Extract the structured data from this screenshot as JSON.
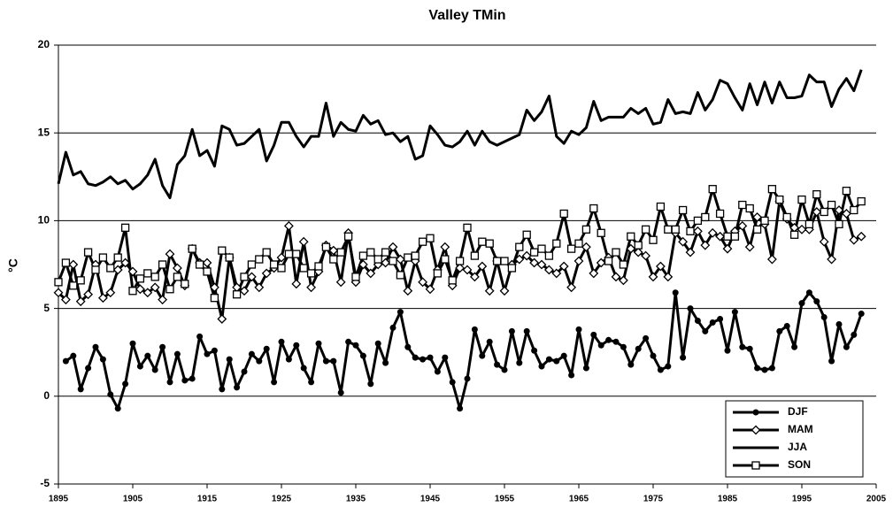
{
  "chart_data": {
    "type": "line",
    "title": "Valley TMin",
    "y_label": "°C",
    "x": [
      1895,
      1896,
      1897,
      1898,
      1899,
      1900,
      1901,
      1902,
      1903,
      1904,
      1905,
      1906,
      1907,
      1908,
      1909,
      1910,
      1911,
      1912,
      1913,
      1914,
      1915,
      1916,
      1917,
      1918,
      1919,
      1920,
      1921,
      1922,
      1923,
      1924,
      1925,
      1926,
      1927,
      1928,
      1929,
      1930,
      1931,
      1932,
      1933,
      1934,
      1935,
      1936,
      1937,
      1938,
      1939,
      1940,
      1941,
      1942,
      1943,
      1944,
      1945,
      1946,
      1947,
      1948,
      1949,
      1950,
      1951,
      1952,
      1953,
      1954,
      1955,
      1956,
      1957,
      1958,
      1959,
      1960,
      1961,
      1962,
      1963,
      1964,
      1965,
      1966,
      1967,
      1968,
      1969,
      1970,
      1971,
      1972,
      1973,
      1974,
      1975,
      1976,
      1977,
      1978,
      1979,
      1980,
      1981,
      1982,
      1983,
      1984,
      1985,
      1986,
      1987,
      1988,
      1989,
      1990,
      1991,
      1992,
      1993,
      1994,
      1995,
      1996,
      1997,
      1998,
      1999,
      2000,
      2001,
      2002,
      2003
    ],
    "series": [
      {
        "name": "DJF",
        "color": "#000000",
        "marker": "circle",
        "values": [
          null,
          2.0,
          2.3,
          0.4,
          1.6,
          2.8,
          2.1,
          0.1,
          -0.7,
          0.7,
          3.0,
          1.7,
          2.3,
          1.5,
          2.8,
          0.8,
          2.4,
          0.9,
          1.0,
          3.4,
          2.4,
          2.6,
          0.4,
          2.1,
          0.5,
          1.4,
          2.4,
          2.0,
          2.7,
          0.8,
          3.1,
          2.1,
          2.9,
          1.6,
          0.8,
          3.0,
          2.0,
          2.0,
          0.2,
          3.1,
          2.9,
          2.3,
          0.7,
          3.0,
          1.9,
          3.9,
          4.8,
          2.8,
          2.2,
          2.1,
          2.2,
          1.4,
          2.2,
          0.8,
          -0.7,
          1.0,
          3.8,
          2.3,
          3.1,
          1.8,
          1.5,
          3.7,
          1.9,
          3.7,
          2.6,
          1.7,
          2.1,
          2.0,
          2.3,
          1.2,
          3.8,
          1.6,
          3.5,
          2.9,
          3.2,
          3.1,
          2.8,
          1.8,
          2.7,
          3.3,
          2.3,
          1.5,
          1.7,
          5.9,
          2.2,
          5.0,
          4.3,
          3.7,
          4.2,
          4.4,
          2.6,
          4.8,
          2.8,
          2.7,
          1.6,
          1.5,
          1.6,
          3.7,
          4.0,
          2.8,
          5.3,
          5.9,
          5.4,
          4.5,
          2.0,
          4.1,
          2.8,
          3.5,
          4.7
        ]
      },
      {
        "name": "MAM",
        "color": "#000000",
        "marker": "diamond",
        "values": [
          5.9,
          5.5,
          7.5,
          5.4,
          5.8,
          7.5,
          5.6,
          5.9,
          7.2,
          7.6,
          7.1,
          6.1,
          5.9,
          6.2,
          5.5,
          8.1,
          7.3,
          6.3,
          8.4,
          7.6,
          7.6,
          6.2,
          4.4,
          7.9,
          6.2,
          6.0,
          6.8,
          6.2,
          7.0,
          7.3,
          7.9,
          9.7,
          6.4,
          8.8,
          6.2,
          7.1,
          8.6,
          8.3,
          6.5,
          9.3,
          6.5,
          7.5,
          7.0,
          7.5,
          7.6,
          8.5,
          7.8,
          6.0,
          7.7,
          6.5,
          6.1,
          7.2,
          8.5,
          6.3,
          7.3,
          7.2,
          6.8,
          7.4,
          6.0,
          7.7,
          6.0,
          7.5,
          7.8,
          8.0,
          7.6,
          7.5,
          7.2,
          7.0,
          7.4,
          6.2,
          7.7,
          8.5,
          7.0,
          7.6,
          7.9,
          6.8,
          6.6,
          8.4,
          8.2,
          8.0,
          6.8,
          7.4,
          6.8,
          9.3,
          8.8,
          8.2,
          9.4,
          8.6,
          9.3,
          9.1,
          8.4,
          9.4,
          9.7,
          8.5,
          10.2,
          9.8,
          7.8,
          11.1,
          10.1,
          9.6,
          9.5,
          9.5,
          10.5,
          8.8,
          7.8,
          10.6,
          10.4,
          8.9,
          9.1
        ]
      },
      {
        "name": "JJA",
        "color": "#000000",
        "marker": "none",
        "values": [
          12.1,
          13.9,
          12.6,
          12.8,
          12.1,
          12.0,
          12.2,
          12.5,
          12.1,
          12.3,
          11.8,
          12.1,
          12.6,
          13.5,
          12.0,
          11.3,
          13.2,
          13.7,
          15.2,
          13.7,
          14.0,
          13.1,
          15.4,
          15.2,
          14.3,
          14.4,
          14.8,
          15.2,
          13.4,
          14.3,
          15.6,
          15.6,
          14.8,
          14.2,
          14.8,
          14.8,
          16.7,
          14.8,
          15.6,
          15.2,
          15.1,
          16.0,
          15.5,
          15.7,
          14.9,
          15.0,
          14.5,
          14.8,
          13.5,
          13.7,
          15.4,
          14.9,
          14.3,
          14.2,
          14.5,
          15.1,
          14.3,
          15.1,
          14.5,
          14.3,
          14.5,
          14.7,
          14.9,
          16.3,
          15.7,
          16.2,
          17.1,
          14.8,
          14.4,
          15.1,
          14.9,
          15.3,
          16.8,
          15.7,
          15.9,
          15.9,
          15.9,
          16.4,
          16.1,
          16.4,
          15.5,
          15.6,
          16.9,
          16.1,
          16.2,
          16.1,
          17.3,
          16.3,
          16.9,
          18.0,
          17.8,
          17.0,
          16.3,
          17.8,
          16.6,
          17.9,
          16.7,
          17.9,
          17.0,
          17.0,
          17.1,
          18.3,
          17.9,
          17.9,
          16.5,
          17.5,
          18.1,
          17.4,
          18.6
        ]
      },
      {
        "name": "SON",
        "color": "#000000",
        "marker": "square",
        "values": [
          6.5,
          7.6,
          6.3,
          6.6,
          8.2,
          7.2,
          7.9,
          7.3,
          7.9,
          9.6,
          6.0,
          6.7,
          7.0,
          6.8,
          7.5,
          6.1,
          6.8,
          6.4,
          8.4,
          7.5,
          7.1,
          5.6,
          8.3,
          7.9,
          5.8,
          6.8,
          7.5,
          7.8,
          8.2,
          7.5,
          7.3,
          8.1,
          8.1,
          7.3,
          7.0,
          7.4,
          8.5,
          7.8,
          8.2,
          9.1,
          6.8,
          8.0,
          8.2,
          7.8,
          8.2,
          7.7,
          6.9,
          7.9,
          8.0,
          8.8,
          9.0,
          7.0,
          7.8,
          6.6,
          7.7,
          9.6,
          8.0,
          8.8,
          8.7,
          7.7,
          7.7,
          7.3,
          8.5,
          9.2,
          8.2,
          8.4,
          8.0,
          8.7,
          10.4,
          8.4,
          8.7,
          9.5,
          10.7,
          9.3,
          7.7,
          8.2,
          7.5,
          9.1,
          8.6,
          9.5,
          8.9,
          10.8,
          9.5,
          9.5,
          10.6,
          9.4,
          10.0,
          10.2,
          11.8,
          10.4,
          9.1,
          9.1,
          10.9,
          10.7,
          9.5,
          10.0,
          11.8,
          11.2,
          10.2,
          9.2,
          11.2,
          9.8,
          11.5,
          10.5,
          10.9,
          9.8,
          11.7,
          10.6,
          11.1
        ]
      }
    ],
    "xlim": [
      1895,
      2005
    ],
    "xticks": [
      1895,
      1905,
      1915,
      1925,
      1935,
      1945,
      1955,
      1965,
      1975,
      1985,
      1995,
      2005
    ],
    "ylim": [
      -5,
      20
    ],
    "yticks": [
      -5,
      0,
      5,
      10,
      15,
      20
    ],
    "grid": true,
    "legend": "lower right"
  }
}
